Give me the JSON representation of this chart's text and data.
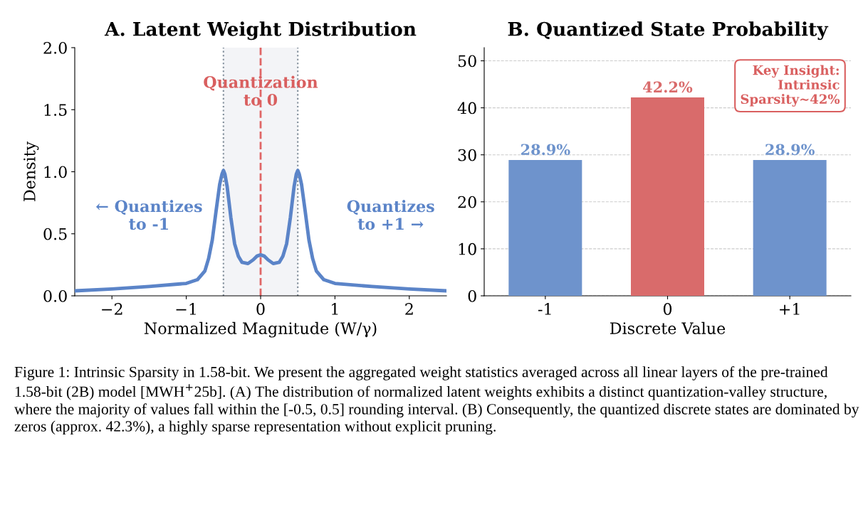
{
  "chart_data": [
    {
      "type": "line",
      "title": "A. Latent Weight Distribution",
      "xlabel": "Normalized Magnitude (W/γ)",
      "ylabel": "Density",
      "x": [
        -2.5,
        -2.0,
        -1.5,
        -1.0,
        -0.85,
        -0.75,
        -0.7,
        -0.65,
        -0.6,
        -0.55,
        -0.52,
        -0.5,
        -0.48,
        -0.45,
        -0.4,
        -0.35,
        -0.3,
        -0.25,
        -0.17,
        -0.1,
        -0.05,
        0,
        0.05,
        0.1,
        0.17,
        0.25,
        0.3,
        0.35,
        0.4,
        0.45,
        0.48,
        0.5,
        0.52,
        0.55,
        0.6,
        0.65,
        0.7,
        0.75,
        0.85,
        1.0,
        1.5,
        2.0,
        2.5
      ],
      "series": [
        {
          "color": "#5b84c8",
          "values": [
            0.04,
            0.055,
            0.075,
            0.1,
            0.13,
            0.2,
            0.3,
            0.45,
            0.68,
            0.9,
            0.98,
            1.01,
            0.98,
            0.88,
            0.63,
            0.42,
            0.32,
            0.27,
            0.26,
            0.29,
            0.32,
            0.33,
            0.32,
            0.29,
            0.26,
            0.27,
            0.32,
            0.42,
            0.63,
            0.88,
            0.98,
            1.01,
            0.98,
            0.9,
            0.68,
            0.45,
            0.3,
            0.2,
            0.13,
            0.1,
            0.075,
            0.055,
            0.04
          ]
        }
      ],
      "xlim": [
        -2.5,
        2.5
      ],
      "xticks": [
        {
          "value": -2,
          "label": "−2"
        },
        {
          "value": -1,
          "label": "−1"
        },
        0,
        1,
        2
      ],
      "ylim": [
        0,
        2.0
      ],
      "yticks": [
        {
          "value": 0,
          "label": "0.0"
        },
        0.5,
        {
          "value": 1,
          "label": "1.0"
        },
        1.5,
        {
          "value": 2,
          "label": "2.0"
        }
      ],
      "bands": [
        {
          "axis": "x",
          "from": -0.5,
          "to": 0.5,
          "color": "#f3f4f7"
        }
      ],
      "ref_lines": [
        {
          "axis": "x",
          "value": -0.5,
          "color": "#7f8c99",
          "line_style": "dotted"
        },
        {
          "axis": "x",
          "value": 0.5,
          "color": "#7f8c99",
          "line_style": "dotted"
        },
        {
          "axis": "x",
          "value": 0,
          "color": "#e06666",
          "line_style": "dashed"
        }
      ],
      "annotations": [
        "Quantization\nto 0",
        "← Quantizes\nto -1",
        "Quantizes\nto +1 →"
      ],
      "grid": false,
      "legend": false
    },
    {
      "type": "bar",
      "title": "B. Quantized State Probability",
      "xlabel": "Discrete Value",
      "categories": [
        "-1",
        "0",
        "+1"
      ],
      "values": [
        28.9,
        42.2,
        28.9
      ],
      "colors": [
        "#6e93cc",
        "#d96b6b",
        "#6e93cc"
      ],
      "value_labels": [
        "28.9%",
        "42.2%",
        "28.9%"
      ],
      "ylim": [
        0,
        52.8
      ],
      "yticks": [
        0,
        10,
        20,
        30,
        40,
        50
      ],
      "grid": "y",
      "legend": false,
      "annotations": [
        "Key Insight:\nIntrinsic\nSparsity~42%",
        "Figure 1: Intrinsic Sparsity in 1.58-bit. We present the aggregated weight statistics averaged across all linear layers of the pre-trained 1.58-bit (2B) model [MWH$^{+}$25b]. (A) The distribution of normalized latent weights exhibits a distinct quantization-valley structure, where the majority of values fall within the [-0.5, 0.5] rounding interval. (B) Consequently, the quantized discrete states are dominated by zeros (approx. 42.3%), a highly sparse representation without explicit pruning."
      ]
    }
  ]
}
